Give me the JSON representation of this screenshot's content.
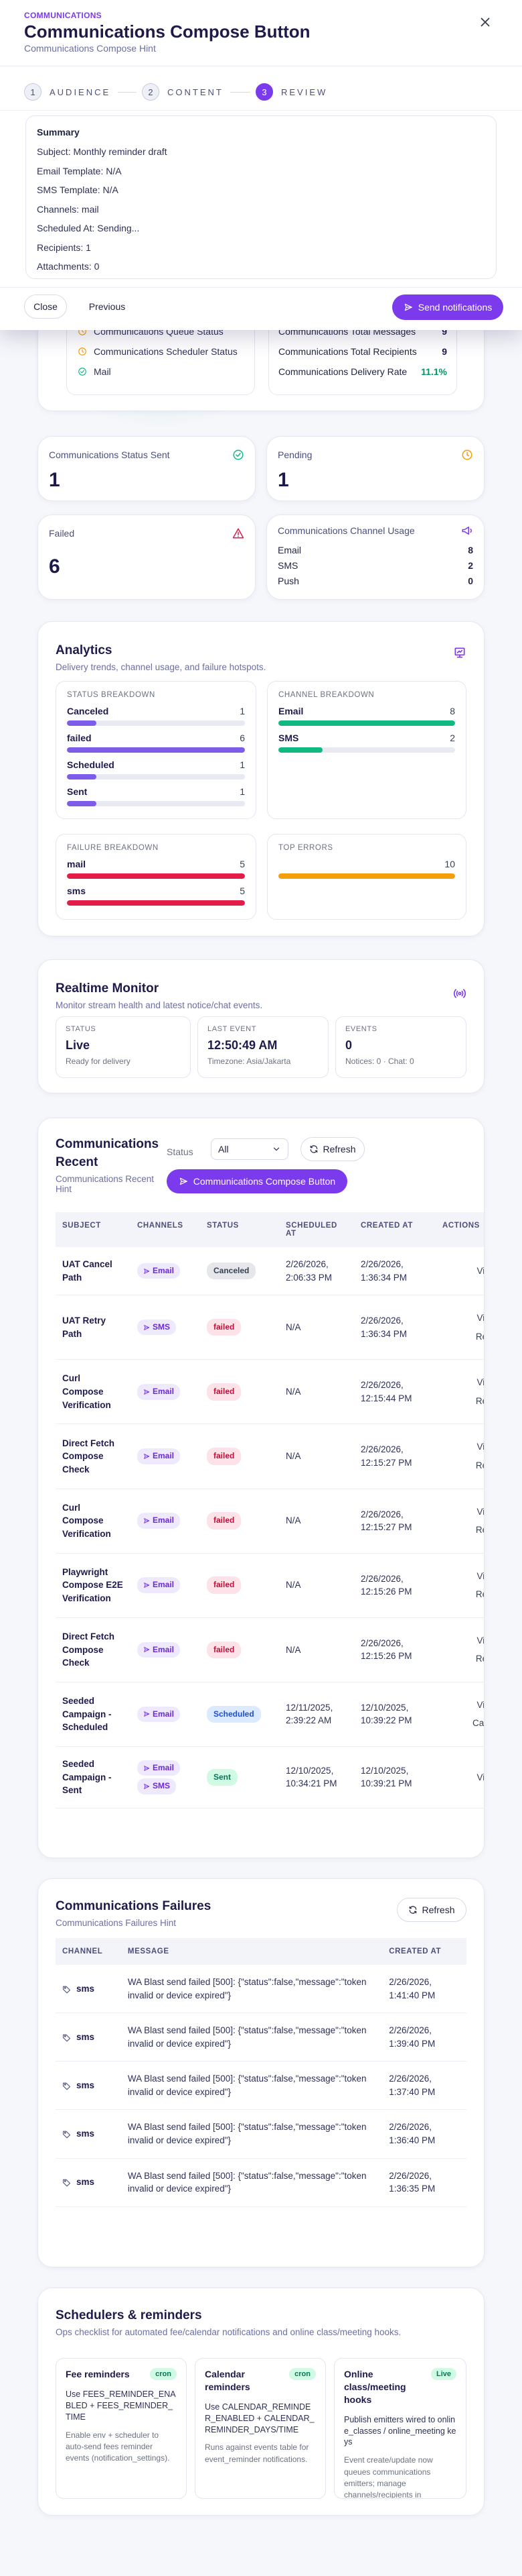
{
  "modal": {
    "eyebrow": "COMMUNICATIONS",
    "title": "Communications Compose Button",
    "hint": "Communications Compose Hint",
    "steps": [
      {
        "number": 1,
        "label": "AUDIENCE"
      },
      {
        "number": 2,
        "label": "CONTENT"
      },
      {
        "number": 3,
        "label": "REVIEW"
      }
    ],
    "summary": {
      "title": "Summary",
      "lines": [
        "Subject: Monthly reminder draft",
        "Email Template: N/A",
        "SMS Template: N/A",
        "Channels: mail",
        "Scheduled At: Sending...",
        "Recipients: 1",
        "Attachments: 0"
      ]
    },
    "close": "Close",
    "previous": "Previous",
    "send": "Send notifications"
  },
  "overview": {
    "checks": [
      "Communications Queue Status",
      "Communications Scheduler Status",
      "Mail"
    ],
    "totals": [
      {
        "label": "Communications Total Messages",
        "value": 9
      },
      {
        "label": "Communications Total Recipients",
        "value": 9
      },
      {
        "label": "Communications Delivery Rate",
        "value": "11.1%"
      }
    ]
  },
  "stats": [
    {
      "label": "Communications Status Sent",
      "value": 1
    },
    {
      "label": "Pending",
      "value": 1
    },
    {
      "label": "Failed",
      "value": 6
    }
  ],
  "channel_usage": {
    "title": "Communications Channel Usage",
    "items": [
      {
        "label": "Email",
        "value": 8
      },
      {
        "label": "SMS",
        "value": 2
      },
      {
        "label": "Push",
        "value": 0
      }
    ]
  },
  "analytics": {
    "title": "Analytics",
    "subtitle": "Delivery trends, channel usage, and failure hotspots.",
    "panels": [
      {
        "title": "STATUS BREAKDOWN",
        "color": "#7c5ce8",
        "items": [
          {
            "label": "Canceled",
            "value": 1
          },
          {
            "label": "failed",
            "value": 6
          },
          {
            "label": "Scheduled",
            "value": 1
          },
          {
            "label": "Sent",
            "value": 1
          }
        ]
      },
      {
        "title": "CHANNEL BREAKDOWN",
        "color": "#10b981",
        "items": [
          {
            "label": "Email",
            "value": 8
          },
          {
            "label": "SMS",
            "value": 2
          }
        ]
      },
      {
        "title": "FAILURE BREAKDOWN",
        "color": "#e11d48",
        "items": [
          {
            "label": "mail",
            "value": 5
          },
          {
            "label": "sms",
            "value": 5
          }
        ]
      },
      {
        "title": "TOP ERRORS",
        "color": "#f59e0b",
        "items": [
          {
            "value": 10
          }
        ]
      }
    ]
  },
  "monitor": {
    "title": "Realtime Monitor",
    "subtitle": "Monitor stream health and latest notice/chat events.",
    "tiles": [
      {
        "label": "STATUS",
        "value": "Live",
        "note": "Ready for delivery"
      },
      {
        "label": "LAST EVENT",
        "value": "12:50:49 AM",
        "note": "Timezone: Asia/Jakarta"
      },
      {
        "label": "EVENTS",
        "value": 0,
        "note": "Notices: 0 · Chat: 0"
      }
    ]
  },
  "recent": {
    "title": "Communications Recent",
    "hint": "Communications Recent Hint",
    "status_label": "Status",
    "status_value": "All",
    "refresh": "Refresh",
    "compose": "Communications Compose Button",
    "columns": [
      "SUBJECT",
      "CHANNELS",
      "STATUS",
      "SCHEDULED AT",
      "CREATED AT",
      "ACTIONS"
    ],
    "rows": [
      {
        "subject": "UAT Cancel Path",
        "channels": [
          "Email"
        ],
        "status": "Canceled",
        "scheduled_at": "2/26/2026, 2:06:33 PM",
        "created_at": "2/26/2026, 1:36:34 PM",
        "actions": [
          "View"
        ]
      },
      {
        "subject": "UAT Retry Path",
        "channels": [
          "SMS"
        ],
        "status": "failed",
        "scheduled_at": "N/A",
        "created_at": "2/26/2026, 1:36:34 PM",
        "actions": [
          "View",
          "Retry"
        ]
      },
      {
        "subject": "Curl Compose Verification",
        "channels": [
          "Email"
        ],
        "status": "failed",
        "scheduled_at": "N/A",
        "created_at": "2/26/2026, 12:15:44 PM",
        "actions": [
          "View",
          "Retry"
        ]
      },
      {
        "subject": "Direct Fetch Compose Check",
        "channels": [
          "Email"
        ],
        "status": "failed",
        "scheduled_at": "N/A",
        "created_at": "2/26/2026, 12:15:27 PM",
        "actions": [
          "View",
          "Retry"
        ]
      },
      {
        "subject": "Curl Compose Verification",
        "channels": [
          "Email"
        ],
        "status": "failed",
        "scheduled_at": "N/A",
        "created_at": "2/26/2026, 12:15:27 PM",
        "actions": [
          "View",
          "Retry"
        ]
      },
      {
        "subject": "Playwright Compose E2E Verification",
        "channels": [
          "Email"
        ],
        "status": "failed",
        "scheduled_at": "N/A",
        "created_at": "2/26/2026, 12:15:26 PM",
        "actions": [
          "View",
          "Retry"
        ]
      },
      {
        "subject": "Direct Fetch Compose Check",
        "channels": [
          "Email"
        ],
        "status": "failed",
        "scheduled_at": "N/A",
        "created_at": "2/26/2026, 12:15:26 PM",
        "actions": [
          "View",
          "Retry"
        ]
      },
      {
        "subject": "Seeded Campaign - Scheduled",
        "channels": [
          "Email"
        ],
        "status": "Scheduled",
        "scheduled_at": "12/11/2025, 2:39:22 AM",
        "created_at": "12/10/2025, 10:39:22 PM",
        "actions": [
          "View",
          "Cancel"
        ]
      },
      {
        "subject": "Seeded Campaign - Sent",
        "channels": [
          "Email",
          "SMS"
        ],
        "status": "Sent",
        "scheduled_at": "12/10/2025, 10:34:21 PM",
        "created_at": "12/10/2025, 10:39:21 PM",
        "actions": [
          "View"
        ]
      }
    ]
  },
  "failures": {
    "title": "Communications Failures",
    "hint": "Communications Failures Hint",
    "refresh": "Refresh",
    "columns": [
      "CHANNEL",
      "MESSAGE",
      "CREATED AT"
    ],
    "rows": [
      {
        "channel": "sms",
        "message": "WA Blast send failed [500]: {\"status\":false,\"message\":\"token invalid or device expired\"}",
        "created_at": "2/26/2026, 1:41:40 PM"
      },
      {
        "channel": "sms",
        "message": "WA Blast send failed [500]: {\"status\":false,\"message\":\"token invalid or device expired\"}",
        "created_at": "2/26/2026, 1:39:40 PM"
      },
      {
        "channel": "sms",
        "message": "WA Blast send failed [500]: {\"status\":false,\"message\":\"token invalid or device expired\"}",
        "created_at": "2/26/2026, 1:37:40 PM"
      },
      {
        "channel": "sms",
        "message": "WA Blast send failed [500]: {\"status\":false,\"message\":\"token invalid or device expired\"}",
        "created_at": "2/26/2026, 1:36:40 PM"
      },
      {
        "channel": "sms",
        "message": "WA Blast send failed [500]: {\"status\":false,\"message\":\"token invalid or device expired\"}",
        "created_at": "2/26/2026, 1:36:35 PM"
      }
    ]
  },
  "schedulers": {
    "title": "Schedulers & reminders",
    "hint": "Ops checklist for automated fee/calendar notifications and online class/meeting hooks.",
    "cards": [
      {
        "title": "Fee reminders",
        "tag": "cron",
        "usage": "Use FEES_REMINDER_ENABLED + FEES_REMINDER_TIME",
        "description": "Enable env + scheduler to auto-send fees reminder events (notification_settings)."
      },
      {
        "title": "Calendar reminders",
        "tag": "cron",
        "usage": "Use CALENDAR_REMINDER_ENABLED + CALENDAR_REMINDER_DAYS/TIME",
        "description": "Runs against events table for event_reminder notifications."
      },
      {
        "title": "Online class/meeting hooks",
        "tag": "Live",
        "usage": "Publish emitters wired to online_classes / online_meeting keys",
        "description": "Event create/update now queues communications emitters; manage channels/recipients in Notification Settings."
      }
    ]
  }
}
